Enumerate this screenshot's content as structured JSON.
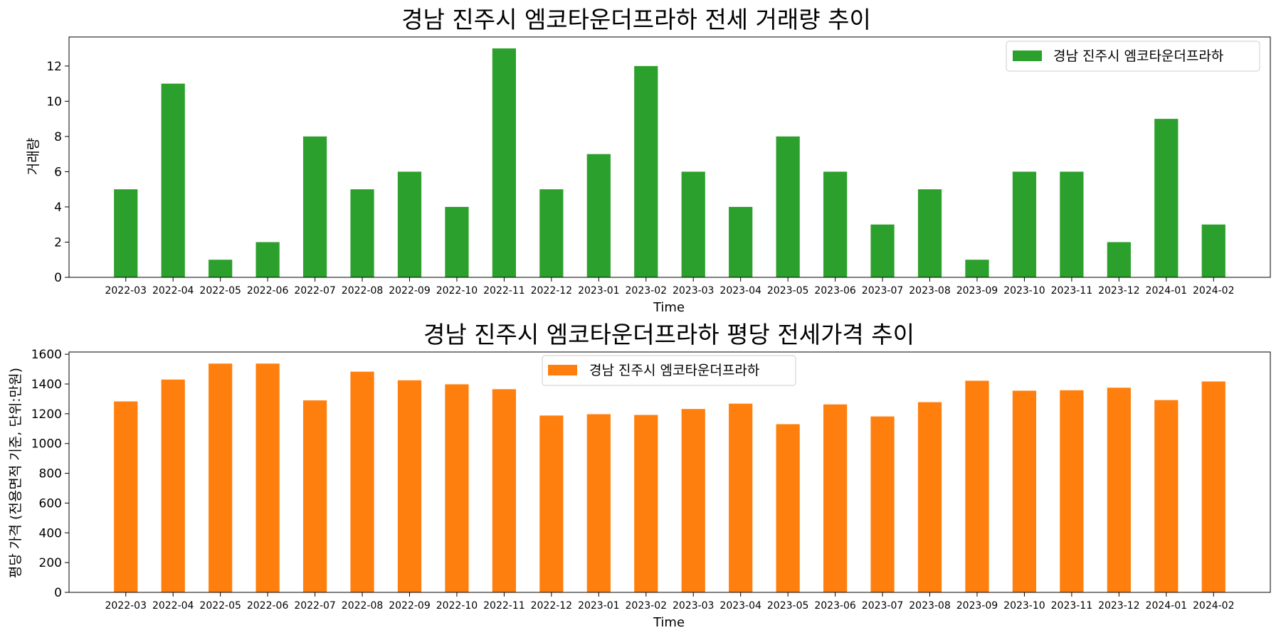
{
  "chart_data": [
    {
      "type": "bar",
      "title": "경남 진주시 엠코타운더프라하 전세 거래량 추이",
      "xlabel": "Time",
      "ylabel": "거래량",
      "ylim": [
        0,
        13.65
      ],
      "yticks": [
        0,
        2,
        4,
        6,
        8,
        10,
        12
      ],
      "legend_position": "upper right",
      "grid": false,
      "categories": [
        "2022-03",
        "2022-04",
        "2022-05",
        "2022-06",
        "2022-07",
        "2022-08",
        "2022-09",
        "2022-10",
        "2022-11",
        "2022-12",
        "2023-01",
        "2023-02",
        "2023-03",
        "2023-04",
        "2023-05",
        "2023-06",
        "2023-07",
        "2023-08",
        "2023-09",
        "2023-10",
        "2023-11",
        "2023-12",
        "2024-01",
        "2024-02"
      ],
      "series": [
        {
          "name": "경남 진주시 엠코타운더프라하",
          "color": "#2ca02c",
          "values": [
            5,
            11,
            1,
            2,
            8,
            5,
            6,
            4,
            13,
            5,
            7,
            12,
            6,
            4,
            8,
            6,
            3,
            5,
            1,
            6,
            6,
            2,
            9,
            3
          ]
        }
      ]
    },
    {
      "type": "bar",
      "title": "경남 진주시 엠코타운더프라하 평당 전세가격 추이",
      "xlabel": "Time",
      "ylabel": "평당 가격 (전용면적 기준, 단위:만원)",
      "ylim": [
        0,
        1615
      ],
      "yticks": [
        0,
        200,
        400,
        600,
        800,
        1000,
        1200,
        1400,
        1600
      ],
      "legend_position": "upper center",
      "grid": false,
      "categories": [
        "2022-03",
        "2022-04",
        "2022-05",
        "2022-06",
        "2022-07",
        "2022-08",
        "2022-09",
        "2022-10",
        "2022-11",
        "2022-12",
        "2023-01",
        "2023-02",
        "2023-03",
        "2023-04",
        "2023-05",
        "2023-06",
        "2023-07",
        "2023-08",
        "2023-09",
        "2023-10",
        "2023-11",
        "2023-12",
        "2024-01",
        "2024-02"
      ],
      "series": [
        {
          "name": "경남 진주시 엠코타운더프라하",
          "color": "#ff7f0e",
          "values": [
            1283,
            1430,
            1537,
            1537,
            1290,
            1483,
            1425,
            1398,
            1365,
            1188,
            1197,
            1192,
            1232,
            1268,
            1130,
            1263,
            1182,
            1278,
            1422,
            1355,
            1358,
            1375,
            1292,
            1417
          ]
        }
      ]
    }
  ]
}
